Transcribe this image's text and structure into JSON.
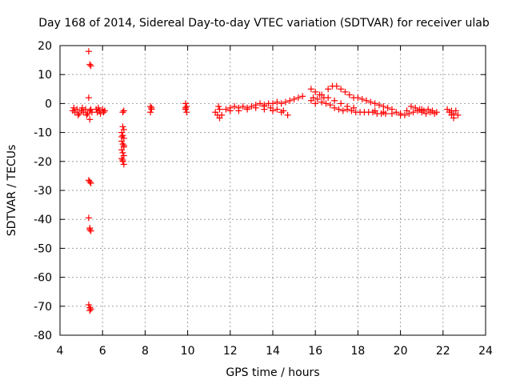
{
  "chart_data": {
    "type": "scatter",
    "title": "Day 168 of 2014, Sidereal Day-to-day VTEC variation (SDTVAR) for receiver ulab",
    "xlabel": "GPS time / hours",
    "ylabel": "SDTVAR / TECUs",
    "xlim": [
      4,
      24
    ],
    "ylim": [
      -80,
      20
    ],
    "xticks": [
      4,
      6,
      8,
      10,
      12,
      14,
      16,
      18,
      20,
      22,
      24
    ],
    "yticks": [
      20,
      10,
      0,
      -10,
      -20,
      -30,
      -40,
      -50,
      -60,
      -70,
      -80
    ],
    "grid": true,
    "marker": "+",
    "color": "#ff0000",
    "series": [
      {
        "name": "SDTVAR",
        "points": [
          [
            4.6,
            -2.5
          ],
          [
            4.7,
            -3.0
          ],
          [
            4.8,
            -2.0
          ],
          [
            4.9,
            -3.5
          ],
          [
            5.0,
            -2.5
          ],
          [
            5.1,
            -3.0
          ],
          [
            5.2,
            -2.0
          ],
          [
            5.3,
            -3.5
          ],
          [
            5.4,
            -2.5
          ],
          [
            5.5,
            -3.0
          ],
          [
            4.65,
            -1.5
          ],
          [
            4.85,
            -4.0
          ],
          [
            5.05,
            -1.5
          ],
          [
            5.25,
            -4.0
          ],
          [
            5.45,
            -2.0
          ],
          [
            5.35,
            18
          ],
          [
            5.4,
            13.5
          ],
          [
            5.45,
            13
          ],
          [
            5.35,
            2
          ],
          [
            5.4,
            -5.5
          ],
          [
            5.35,
            -26.5
          ],
          [
            5.4,
            -27
          ],
          [
            5.45,
            -27.5
          ],
          [
            5.35,
            -39.5
          ],
          [
            5.4,
            -43
          ],
          [
            5.45,
            -44
          ],
          [
            5.4,
            -43.5
          ],
          [
            5.35,
            -69.5
          ],
          [
            5.4,
            -70.5
          ],
          [
            5.45,
            -71
          ],
          [
            5.4,
            -71.5
          ],
          [
            5.7,
            -2
          ],
          [
            5.75,
            -3
          ],
          [
            5.8,
            -1.5
          ],
          [
            5.85,
            -2.5
          ],
          [
            5.9,
            -3.5
          ],
          [
            6.0,
            -2
          ],
          [
            6.05,
            -3
          ],
          [
            6.1,
            -2.5
          ],
          [
            6.95,
            -8
          ],
          [
            7.0,
            -9
          ],
          [
            6.9,
            -10
          ],
          [
            6.95,
            -11
          ],
          [
            7.0,
            -12
          ],
          [
            6.9,
            -13
          ],
          [
            6.95,
            -14
          ],
          [
            7.0,
            -15
          ],
          [
            6.9,
            -16
          ],
          [
            6.95,
            -17
          ],
          [
            7.0,
            -18
          ],
          [
            6.9,
            -19
          ],
          [
            6.95,
            -20
          ],
          [
            7.0,
            -21
          ],
          [
            6.95,
            -19.5
          ],
          [
            7.0,
            -14.5
          ],
          [
            6.9,
            -11.5
          ],
          [
            6.95,
            -3
          ],
          [
            7.0,
            -2.5
          ],
          [
            8.25,
            -1
          ],
          [
            8.3,
            -2
          ],
          [
            8.25,
            -3
          ],
          [
            8.3,
            -1.5
          ],
          [
            9.9,
            0
          ],
          [
            9.95,
            -1
          ],
          [
            9.9,
            -2
          ],
          [
            9.95,
            -3
          ],
          [
            9.9,
            -1.5
          ],
          [
            11.3,
            -3
          ],
          [
            11.4,
            -4
          ],
          [
            11.5,
            -5
          ],
          [
            11.6,
            -4
          ],
          [
            11.5,
            -2
          ],
          [
            11.45,
            -1
          ],
          [
            11.8,
            -2
          ],
          [
            12.0,
            -1.5
          ],
          [
            12.2,
            -1
          ],
          [
            12.4,
            -1.5
          ],
          [
            12.6,
            -1
          ],
          [
            12.8,
            -1.5
          ],
          [
            13.0,
            -1
          ],
          [
            13.2,
            -0.5
          ],
          [
            13.4,
            0
          ],
          [
            13.6,
            -0.5
          ],
          [
            13.8,
            0
          ],
          [
            14.0,
            0
          ],
          [
            14.2,
            0.5
          ],
          [
            14.4,
            0
          ],
          [
            14.6,
            0.5
          ],
          [
            14.8,
            1
          ],
          [
            15.0,
            1.5
          ],
          [
            15.2,
            2
          ],
          [
            15.4,
            2.5
          ],
          [
            12.0,
            -2.5
          ],
          [
            12.4,
            -2.5
          ],
          [
            12.8,
            -2
          ],
          [
            13.2,
            -1.5
          ],
          [
            13.6,
            -2
          ],
          [
            14.0,
            -2.5
          ],
          [
            14.4,
            -3
          ],
          [
            14.7,
            -4
          ],
          [
            13.6,
            -1
          ],
          [
            13.9,
            -1.5
          ],
          [
            14.2,
            -2
          ],
          [
            14.5,
            -2.5
          ],
          [
            15.8,
            5
          ],
          [
            16.0,
            4
          ],
          [
            16.2,
            3
          ],
          [
            16.4,
            2
          ],
          [
            16.6,
            5
          ],
          [
            16.8,
            6
          ],
          [
            17.0,
            6
          ],
          [
            17.2,
            5
          ],
          [
            17.4,
            4
          ],
          [
            17.6,
            3
          ],
          [
            17.8,
            2
          ],
          [
            18.0,
            2
          ],
          [
            18.2,
            1.5
          ],
          [
            18.4,
            1
          ],
          [
            18.6,
            0.5
          ],
          [
            18.8,
            0
          ],
          [
            19.0,
            -0.5
          ],
          [
            19.2,
            -1
          ],
          [
            19.4,
            -1.5
          ],
          [
            19.6,
            -2
          ],
          [
            15.9,
            2
          ],
          [
            16.1,
            1.5
          ],
          [
            16.3,
            0.5
          ],
          [
            16.5,
            0
          ],
          [
            16.7,
            -0.5
          ],
          [
            16.9,
            -1.5
          ],
          [
            17.1,
            -2
          ],
          [
            17.3,
            -2.5
          ],
          [
            17.5,
            -2
          ],
          [
            17.7,
            -2.5
          ],
          [
            17.9,
            -3
          ],
          [
            18.1,
            -3
          ],
          [
            18.3,
            -3
          ],
          [
            18.5,
            -3
          ],
          [
            18.7,
            -3
          ],
          [
            18.9,
            -3.5
          ],
          [
            19.1,
            -3.5
          ],
          [
            19.3,
            -3.5
          ],
          [
            15.8,
            1
          ],
          [
            16.0,
            0
          ],
          [
            16.3,
            3
          ],
          [
            16.6,
            2
          ],
          [
            16.9,
            1
          ],
          [
            17.2,
            0
          ],
          [
            17.5,
            -1
          ],
          [
            17.8,
            -1.5
          ],
          [
            18.8,
            -2.5
          ],
          [
            19.2,
            -3
          ],
          [
            19.6,
            -3.5
          ],
          [
            20.0,
            -4
          ],
          [
            20.2,
            -4
          ],
          [
            20.4,
            -3.5
          ],
          [
            20.6,
            -3
          ],
          [
            20.8,
            -2.5
          ],
          [
            21.0,
            -2
          ],
          [
            19.8,
            -3
          ],
          [
            20.0,
            -3.5
          ],
          [
            20.3,
            -2.5
          ],
          [
            20.5,
            -1
          ],
          [
            20.7,
            -1.5
          ],
          [
            20.9,
            -2
          ],
          [
            21.1,
            -2.5
          ],
          [
            21.3,
            -2
          ],
          [
            21.0,
            -3
          ],
          [
            21.2,
            -3.5
          ],
          [
            21.4,
            -3
          ],
          [
            21.6,
            -3.5
          ],
          [
            21.5,
            -2.5
          ],
          [
            21.7,
            -3
          ],
          [
            22.2,
            -2
          ],
          [
            22.3,
            -3
          ],
          [
            22.4,
            -4
          ],
          [
            22.5,
            -3.5
          ],
          [
            22.6,
            -2.5
          ],
          [
            22.7,
            -4
          ],
          [
            22.5,
            -5
          ],
          [
            22.4,
            -2.5
          ]
        ]
      }
    ]
  }
}
